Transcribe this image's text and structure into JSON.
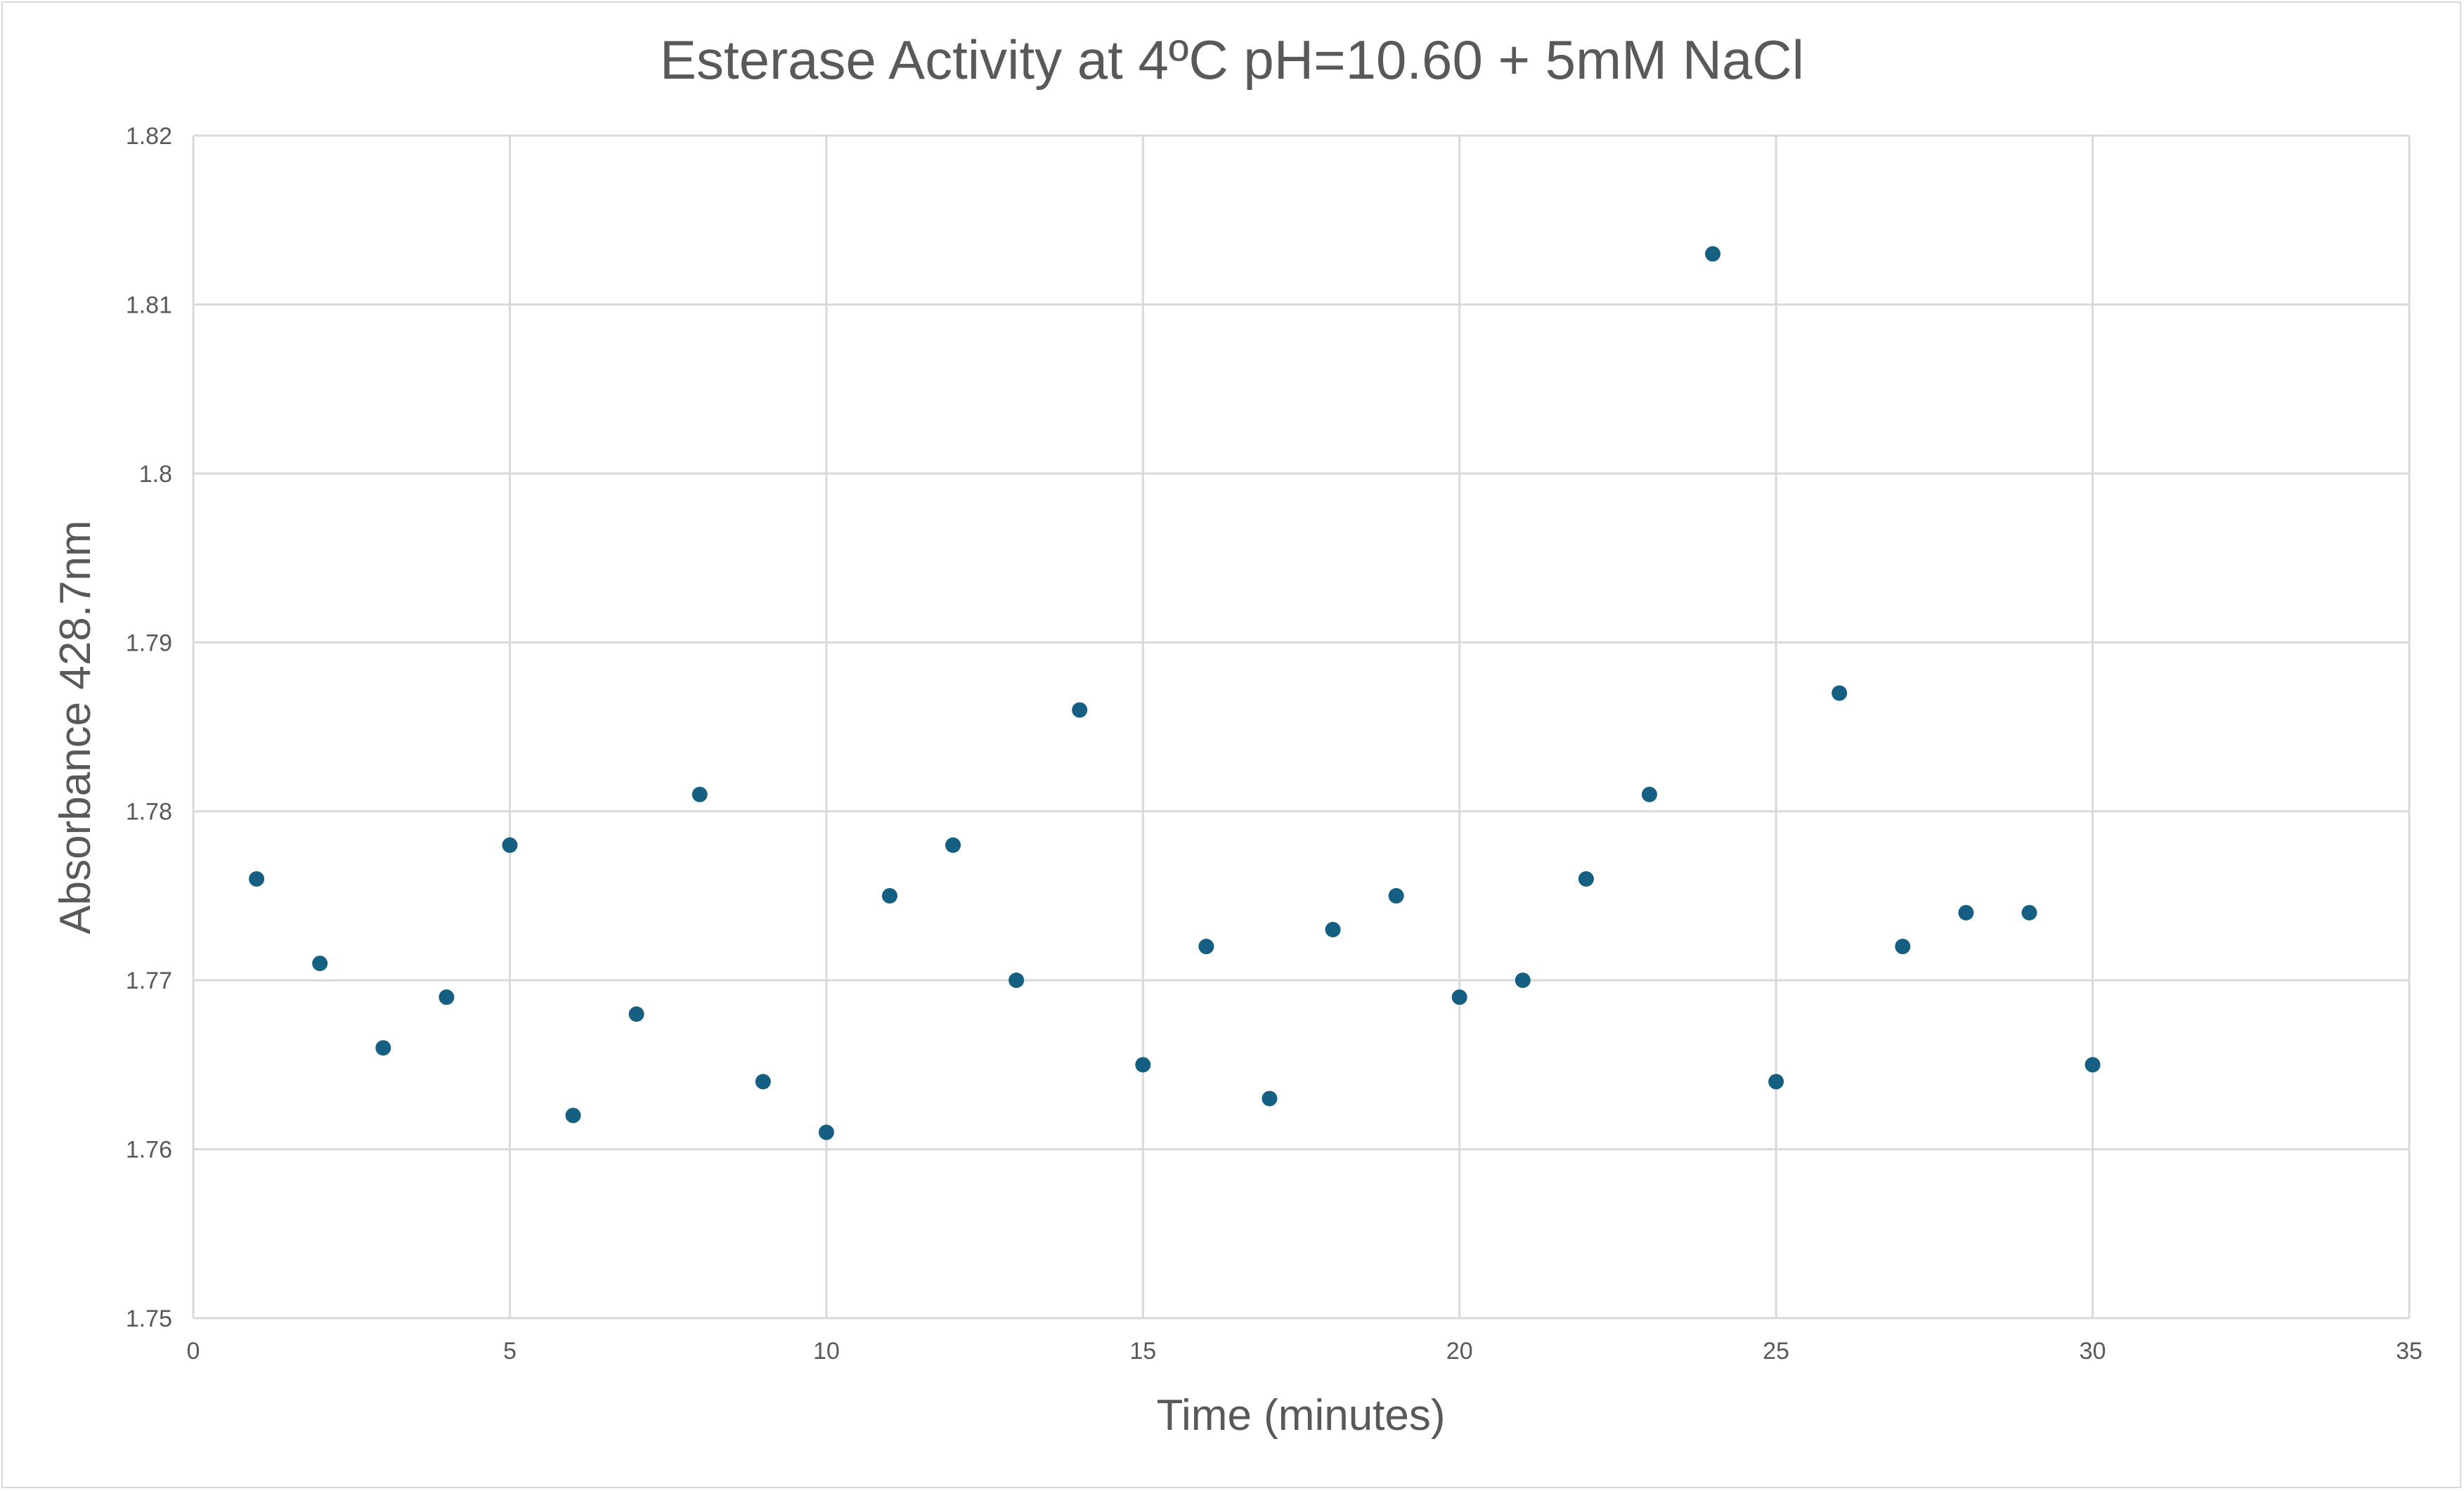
{
  "chart_data": {
    "type": "scatter",
    "title": "Esterase Activity at  4ºC pH=10.60  + 5mM NaCl",
    "xlabel": "Time (minutes)",
    "ylabel": "Absorbance 428.7nm",
    "xlim": [
      0,
      35
    ],
    "ylim": [
      1.75,
      1.82
    ],
    "xticks": [
      0,
      5,
      10,
      15,
      20,
      25,
      30,
      35
    ],
    "yticks": [
      1.75,
      1.76,
      1.77,
      1.78,
      1.79,
      1.8,
      1.81,
      1.82
    ],
    "ytick_labels": [
      "1.75",
      "1.76",
      "1.77",
      "1.78",
      "1.79",
      "1.8",
      "1.81",
      "1.82"
    ],
    "grid": true,
    "marker_color": "#156082",
    "x": [
      1,
      2,
      3,
      4,
      5,
      6,
      7,
      8,
      9,
      10,
      11,
      12,
      13,
      14,
      15,
      16,
      17,
      18,
      19,
      20,
      21,
      22,
      23,
      24,
      25,
      26,
      27,
      28,
      29,
      30
    ],
    "y": [
      1.776,
      1.771,
      1.766,
      1.769,
      1.778,
      1.762,
      1.768,
      1.781,
      1.764,
      1.761,
      1.775,
      1.778,
      1.77,
      1.786,
      1.765,
      1.772,
      1.763,
      1.773,
      1.775,
      1.769,
      1.77,
      1.776,
      1.781,
      1.813,
      1.764,
      1.787,
      1.772,
      1.774,
      1.774,
      1.765
    ]
  }
}
